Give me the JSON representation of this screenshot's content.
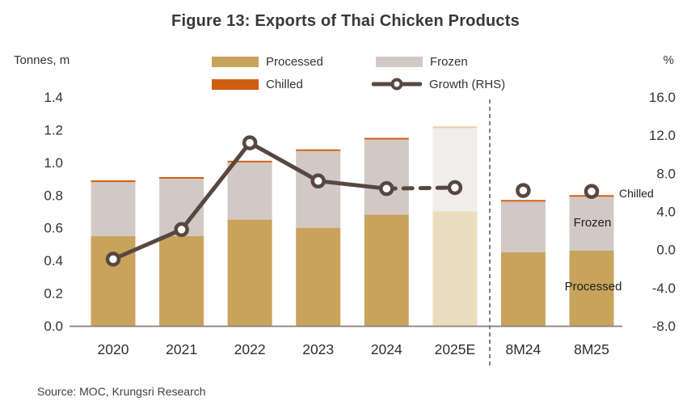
{
  "title": "Figure 13: Exports of Thai Chicken Products",
  "axes": {
    "left_title": "Tonnes, m",
    "right_title": "%"
  },
  "legend": [
    {
      "label": "Processed",
      "color": "#C8A35B"
    },
    {
      "label": "Frozen",
      "color": "#D2C8C6"
    },
    {
      "label": "Chilled",
      "color": "#CE5D12"
    },
    {
      "label": "Growth (RHS)",
      "color": "#57473F"
    }
  ],
  "chart_data": {
    "type": "bar",
    "subtype": "stacked-bar-with-line",
    "categories": [
      "2020",
      "2021",
      "2022",
      "2023",
      "2024",
      "2025E",
      "8M24",
      "8M25"
    ],
    "series": [
      {
        "name": "Processed",
        "type": "bar",
        "axis": "left",
        "color": "#C8A35B",
        "faded_color": "#EADDBE",
        "values": [
          0.55,
          0.55,
          0.65,
          0.6,
          0.68,
          0.7,
          0.45,
          0.46
        ]
      },
      {
        "name": "Frozen",
        "type": "bar",
        "axis": "left",
        "color": "#D2C8C6",
        "faded_color": "#F1EDEC",
        "values": [
          0.33,
          0.35,
          0.35,
          0.47,
          0.46,
          0.51,
          0.31,
          0.33
        ]
      },
      {
        "name": "Chilled",
        "type": "bar",
        "axis": "left",
        "color": "#CE5D12",
        "faded_color": "#EBCBA3",
        "values": [
          0.01,
          0.01,
          0.01,
          0.01,
          0.01,
          0.01,
          0.01,
          0.01
        ]
      },
      {
        "name": "Growth (RHS)",
        "type": "line",
        "axis": "right",
        "color": "#57473F",
        "values": [
          -1.0,
          2.1,
          11.2,
          7.2,
          6.4,
          6.5,
          6.2,
          6.1
        ],
        "solid_segment_end_index": 4,
        "dashed_segment": [
          4,
          5
        ],
        "isolated_marker_indices": [
          6,
          7
        ]
      }
    ],
    "forecast_indices": [
      5
    ],
    "separator_after_index": 5,
    "left_axis": {
      "title": "Tonnes, m",
      "min": 0.0,
      "max": 1.4,
      "tick_labels": [
        "1.4",
        "1.2",
        "1.0",
        "0.8",
        "0.6",
        "0.4",
        "0.2",
        "0.0"
      ]
    },
    "right_axis": {
      "title": "%",
      "min": -8.0,
      "max": 16.0,
      "tick_labels": [
        "16.0",
        "12.0",
        "8.0",
        "4.0",
        "0.0",
        "-4.0",
        "-8.0"
      ]
    },
    "grid": false,
    "legend_position": "top-center",
    "annotations": [
      {
        "text": "Chilled",
        "target": "8M25 chilled segment"
      },
      {
        "text": "Frozen",
        "target": "8M25 frozen segment"
      },
      {
        "text": "Processed",
        "target": "8M25 processed segment"
      }
    ]
  },
  "source": "Source: MOC, Krungsri Research"
}
